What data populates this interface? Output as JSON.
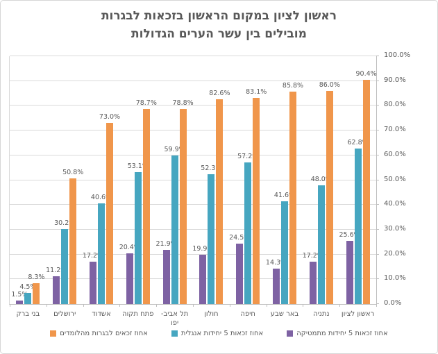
{
  "title": {
    "line1": "ראשון לציון במקום הראשון בזכאות לבגרות",
    "line2": "מובילים בין עשר הערים הגדולות"
  },
  "chart_data": {
    "type": "bar",
    "direction": "rtl",
    "title": "ראשון לציון במקום הראשון בזכאות לבגרות מובילים בין עשר הערים הגדולות",
    "categories": [
      "בני ברק",
      "ירושלים",
      "אשדוד",
      "פתח תקוה",
      "תל אביב-יפו",
      "חולון",
      "חיפה",
      "באר שבע",
      "נתניה",
      "ראשון לציון"
    ],
    "category_labels": [
      "בני ברק",
      "ירושלים",
      "אשדוד",
      "פתח תקוה",
      "תל אביב-\nיפו",
      "חולון",
      "חיפה",
      "באר שבע",
      "נתניה",
      "ראשון לציון"
    ],
    "series": [
      {
        "name": "אחוז זכאות 5 יחידות מתמטיקה",
        "color": "#7E62A3",
        "values": [
          1.5,
          11.2,
          17.2,
          20.4,
          21.9,
          19.9,
          24.5,
          14.3,
          17.2,
          25.6
        ]
      },
      {
        "name": "אחוז זכאות 5 יחידות אנגלית",
        "color": "#46A6C0",
        "values": [
          4.5,
          30.2,
          40.6,
          53.1,
          59.9,
          52.3,
          57.2,
          41.6,
          48.0,
          62.8
        ]
      },
      {
        "name": "אחוז זכאים לבגרות מהלומדים",
        "color": "#F0964B",
        "values": [
          8.3,
          50.8,
          73.0,
          78.7,
          78.8,
          82.6,
          83.1,
          85.8,
          86.0,
          90.4
        ]
      }
    ],
    "ylim": [
      0,
      100
    ],
    "ytick_step": 10,
    "ytick_labels": [
      "0.0%",
      "10.0%",
      "20.0%",
      "30.0%",
      "40.0%",
      "50.0%",
      "60.0%",
      "70.0%",
      "80.0%",
      "90.0%",
      "100.0%"
    ],
    "value_suffix": "%",
    "grid": true,
    "legend_position": "bottom",
    "colors": {
      "grid": "#D9D9D9",
      "axis": "#BFBFBF",
      "text": "#595959"
    }
  }
}
